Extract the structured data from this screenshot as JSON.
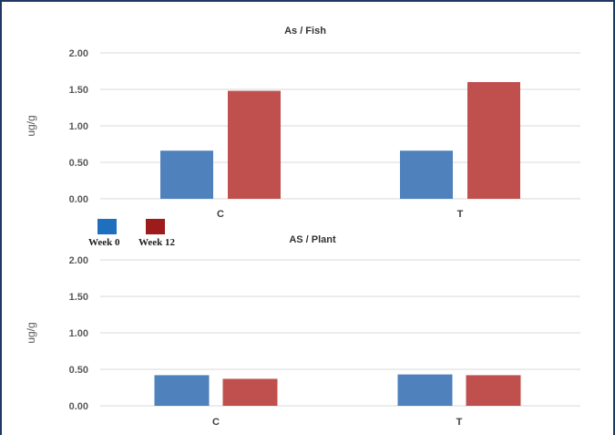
{
  "colors": {
    "week0": "#4f81bd",
    "week12": "#c0504d",
    "legend_week0": "#1f6fbf",
    "legend_week12": "#9e1b1b",
    "grid": "#d9d9d9"
  },
  "legend": {
    "items": [
      {
        "label": "Week 0",
        "color": "#1f6fbf"
      },
      {
        "label": "Week 12",
        "color": "#9e1b1b"
      }
    ]
  },
  "chart_data": [
    {
      "type": "bar",
      "title": "As / Fish",
      "ylabel": "ug/g",
      "xlabel": "",
      "categories": [
        "C",
        "T"
      ],
      "ylim": [
        0,
        2.0
      ],
      "yticks": [
        "2.00",
        "1.50",
        "1.00",
        "0.50",
        "0.00"
      ],
      "grid": true,
      "series": [
        {
          "name": "Week 0",
          "values": [
            0.66,
            0.66
          ]
        },
        {
          "name": "Week 12",
          "values": [
            1.48,
            1.6
          ]
        }
      ]
    },
    {
      "type": "bar",
      "title": "AS / Plant",
      "ylabel": "ug/g",
      "xlabel": "",
      "categories": [
        "C",
        "T"
      ],
      "ylim": [
        0,
        2.0
      ],
      "yticks": [
        "2.00",
        "1.50",
        "1.00",
        "0.50",
        "0.00"
      ],
      "grid": true,
      "series": [
        {
          "name": "Week 0",
          "values": [
            0.42,
            0.43
          ]
        },
        {
          "name": "Week 12",
          "values": [
            0.37,
            0.42
          ]
        }
      ]
    }
  ]
}
